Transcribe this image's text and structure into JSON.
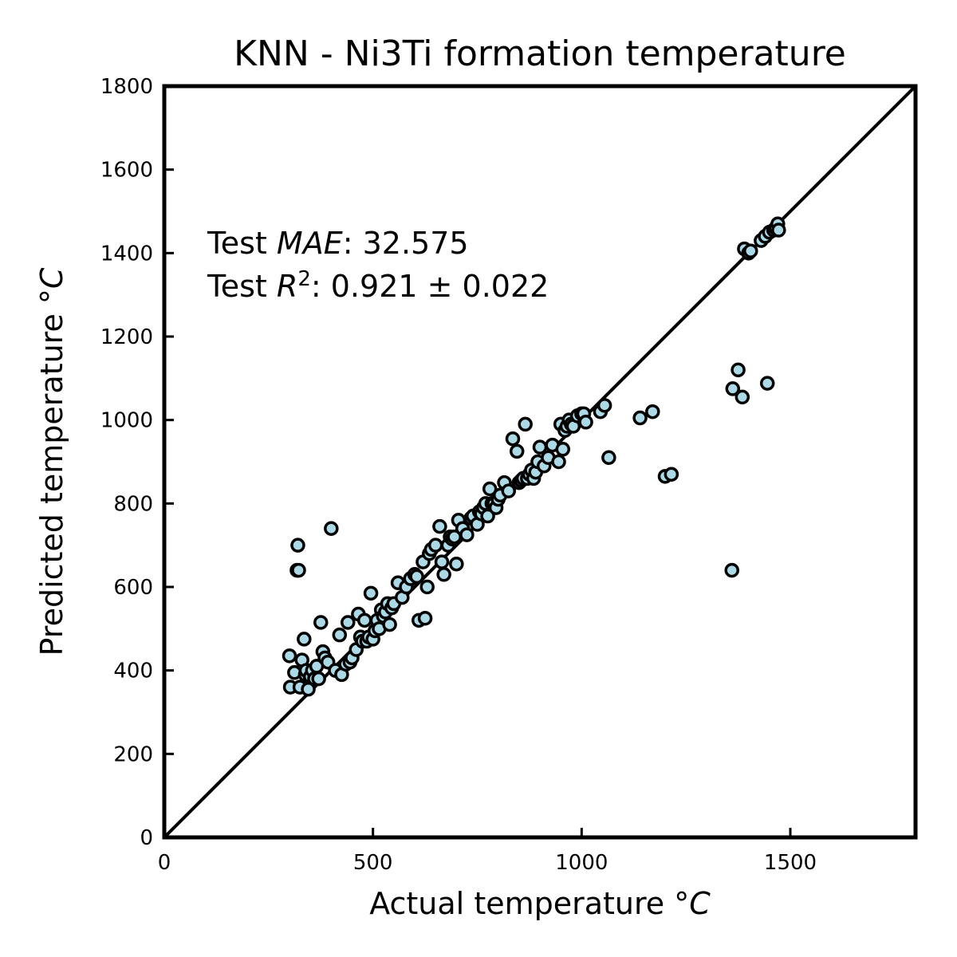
{
  "chart_data": {
    "type": "scatter",
    "title": "KNN - Ni3Ti formation temperature",
    "xlabel": "Actual temperature °",
    "xlabel_unit": "C",
    "ylabel": "Predicted temperature °",
    "ylabel_unit": "C",
    "xlim": [
      0,
      1800
    ],
    "ylim": [
      0,
      1800
    ],
    "xticks": [
      0,
      500,
      1000,
      1500
    ],
    "yticks": [
      0,
      200,
      400,
      600,
      800,
      1000,
      1200,
      1400,
      1600,
      1800
    ],
    "reference_line": "y = x",
    "grid": false,
    "marker_fill": "#add8e6",
    "marker_edge": "#000000",
    "annotation": {
      "line1_prefix": "Test ",
      "line1_metric": "MAE",
      "line1_value": ": 32.575",
      "line2_prefix": "Test ",
      "line2_metric": "R",
      "line2_sup": "2",
      "line2_value": ": 0.921 ± 0.022"
    },
    "series": [
      {
        "x": [
          300,
          302,
          312,
          318,
          320,
          322,
          325,
          330,
          335,
          338,
          340,
          345,
          350,
          355,
          360,
          365,
          370,
          375,
          380,
          385,
          392,
          400,
          410,
          420,
          425,
          435,
          440,
          445,
          450,
          460,
          465,
          470,
          475,
          480,
          485,
          490,
          495,
          500,
          505,
          510,
          515,
          520,
          525,
          530,
          535,
          540,
          545,
          550,
          560,
          570,
          580,
          590,
          600,
          605,
          610,
          620,
          625,
          630,
          635,
          640,
          650,
          660,
          665,
          670,
          680,
          685,
          690,
          695,
          700,
          705,
          715,
          725,
          735,
          740,
          750,
          755,
          760,
          765,
          770,
          775,
          780,
          785,
          790,
          795,
          800,
          805,
          815,
          825,
          835,
          845,
          850,
          855,
          860,
          865,
          870,
          875,
          880,
          885,
          890,
          895,
          900,
          910,
          920,
          930,
          945,
          950,
          955,
          960,
          965,
          970,
          975,
          980,
          990,
          1000,
          1005,
          1010,
          1045,
          1055,
          1065,
          1140,
          1170,
          1200,
          1215,
          1360,
          1362,
          1375,
          1385,
          1390,
          1400,
          1405,
          1430,
          1440,
          1450,
          1460,
          1465,
          1470,
          1472,
          1445
        ],
        "y": [
          435,
          360,
          395,
          640,
          700,
          640,
          360,
          425,
          475,
          390,
          400,
          355,
          385,
          400,
          380,
          410,
          380,
          515,
          445,
          430,
          420,
          740,
          400,
          485,
          390,
          415,
          515,
          420,
          430,
          450,
          535,
          480,
          470,
          520,
          470,
          480,
          585,
          475,
          495,
          520,
          500,
          545,
          530,
          540,
          560,
          510,
          550,
          560,
          610,
          575,
          600,
          620,
          630,
          625,
          520,
          660,
          525,
          600,
          680,
          690,
          700,
          745,
          660,
          630,
          700,
          720,
          715,
          720,
          655,
          760,
          740,
          725,
          765,
          770,
          750,
          780,
          775,
          790,
          800,
          770,
          835,
          800,
          800,
          790,
          810,
          820,
          850,
          830,
          955,
          925,
          850,
          855,
          860,
          990,
          860,
          870,
          880,
          860,
          875,
          900,
          935,
          890,
          910,
          940,
          900,
          990,
          930,
          975,
          985,
          1000,
          990,
          985,
          1010,
          1015,
          1015,
          995,
          1020,
          1035,
          910,
          1005,
          1020,
          865,
          870,
          640,
          1075,
          1120,
          1055,
          1410,
          1400,
          1405,
          1430,
          1440,
          1450,
          1455,
          1460,
          1470,
          1455,
          1088
        ]
      }
    ]
  }
}
